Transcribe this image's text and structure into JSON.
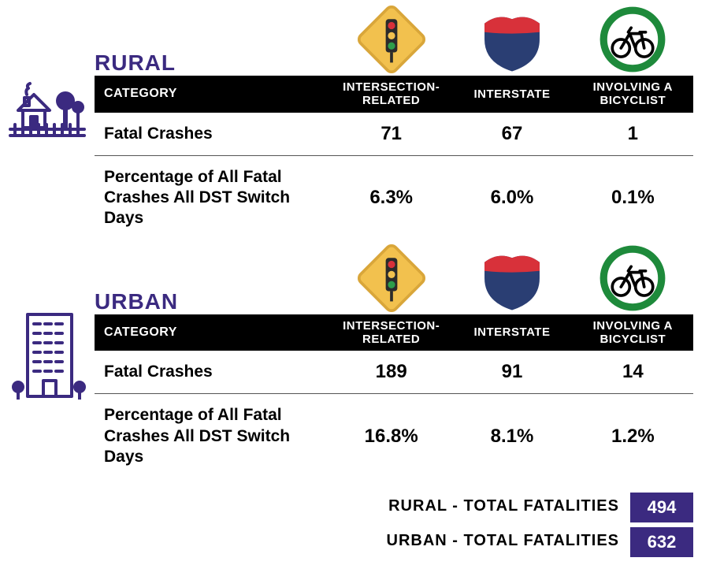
{
  "colors": {
    "accent_purple": "#3b2a80",
    "header_bg": "#000000",
    "header_fg": "#ffffff",
    "icon_yellow": "#f2c14e",
    "icon_yellow_border": "#d9a63a",
    "icon_shield_top": "#d8313a",
    "icon_shield_body": "#2a3e73",
    "icon_green": "#1e8a3b",
    "total_box_bg": "#3b2a80",
    "total_box_fg": "#ffffff",
    "row_border": "#555555"
  },
  "sections": [
    {
      "key": "rural",
      "title": "RURAL",
      "left_icon": "rural-house-icon",
      "columns": [
        {
          "icon": "intersection-sign-icon",
          "header": "INTERSECTION-\nRELATED"
        },
        {
          "icon": "interstate-shield-icon",
          "header": "INTERSTATE"
        },
        {
          "icon": "bicyclist-icon",
          "header": "INVOLVING A\nBICYCLIST"
        }
      ],
      "category_header": "CATEGORY",
      "rows": [
        {
          "label": "Fatal Crashes",
          "values": [
            "71",
            "67",
            "1"
          ]
        },
        {
          "label": "Percentage of All Fatal Crashes All DST Switch Days",
          "values": [
            "6.3%",
            "6.0%",
            "0.1%"
          ]
        }
      ]
    },
    {
      "key": "urban",
      "title": "URBAN",
      "left_icon": "urban-building-icon",
      "columns": [
        {
          "icon": "intersection-sign-icon",
          "header": "INTERSECTION-\nRELATED"
        },
        {
          "icon": "interstate-shield-icon",
          "header": "INTERSTATE"
        },
        {
          "icon": "bicyclist-icon",
          "header": "INVOLVING A\nBICYCLIST"
        }
      ],
      "category_header": "CATEGORY",
      "rows": [
        {
          "label": "Fatal Crashes",
          "values": [
            "189",
            "91",
            "14"
          ]
        },
        {
          "label": "Percentage of All Fatal Crashes All DST Switch Days",
          "values": [
            "16.8%",
            "8.1%",
            "1.2%"
          ]
        }
      ]
    }
  ],
  "totals": [
    {
      "label": "RURAL - TOTAL FATALITIES",
      "value": "494"
    },
    {
      "label": "URBAN - TOTAL FATALITIES",
      "value": "632"
    }
  ]
}
